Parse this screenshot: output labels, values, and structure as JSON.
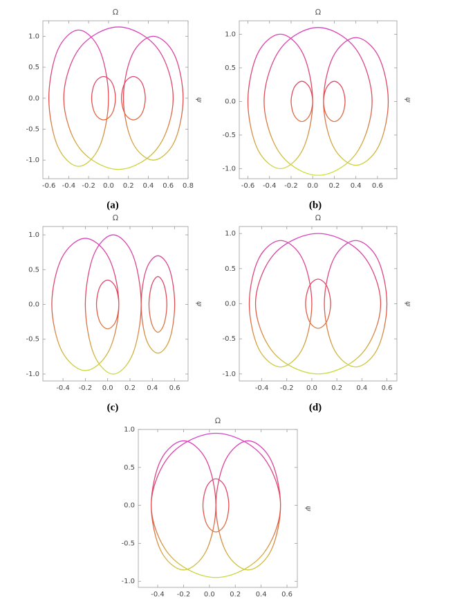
{
  "chart_data": [
    {
      "type": "line",
      "title": "Ω",
      "y_label": "ψ",
      "caption": "(a)",
      "gradient": [
        "#d63fd0",
        "#e24a4a",
        "#c6ee3a"
      ],
      "xlim": [
        -0.66,
        0.8
      ],
      "ylim": [
        -1.3,
        1.25
      ],
      "xticks": [
        -0.6,
        -0.4,
        -0.2,
        {
          "value": 0,
          "label": "0.0"
        },
        0.2,
        0.4,
        0.6,
        0.8
      ],
      "yticks": [
        {
          "value": -1,
          "label": "-1.0"
        },
        -0.5,
        {
          "value": 0,
          "label": "0.0"
        },
        0.5,
        {
          "value": 1,
          "label": "1.0"
        }
      ],
      "x": [
        0,
        -0.09,
        -0.3,
        -0.51,
        -0.6,
        -0.51,
        -0.3,
        -0.09,
        0,
        null,
        0.65,
        0.49,
        0.1,
        -0.29,
        -0.45,
        -0.29,
        0.1,
        0.49,
        0.65,
        null,
        0.75,
        0.66,
        0.45,
        0.24,
        0.15,
        0.24,
        0.45,
        0.66,
        0.75,
        null,
        0.07,
        0.035,
        -0.05,
        -0.135,
        -0.17,
        -0.135,
        -0.05,
        0.035,
        0.07,
        null,
        0.37,
        0.335,
        0.25,
        0.165,
        0.13,
        0.165,
        0.25,
        0.335,
        0.37
      ],
      "values": [
        0,
        0.78,
        1.1,
        0.78,
        0,
        -0.78,
        -1.1,
        -0.78,
        0,
        null,
        0,
        0.81,
        1.15,
        0.81,
        0,
        -0.81,
        -1.15,
        -0.81,
        0,
        null,
        0,
        0.71,
        1,
        0.71,
        0,
        -0.71,
        -1,
        -0.71,
        0,
        null,
        0,
        0.25,
        0.35,
        0.25,
        0,
        -0.25,
        -0.35,
        -0.25,
        0,
        null,
        0,
        0.25,
        0.35,
        0.25,
        0,
        -0.25,
        -0.35,
        -0.25,
        0
      ]
    },
    {
      "type": "line",
      "title": "Ω",
      "y_label": "ψ",
      "caption": "(b)",
      "gradient": [
        "#d63fd0",
        "#e24a4a",
        "#c6ee3a"
      ],
      "xlim": [
        -0.68,
        0.78
      ],
      "ylim": [
        -1.15,
        1.2
      ],
      "xticks": [
        -0.6,
        -0.4,
        -0.2,
        {
          "value": 0,
          "label": "0.0"
        },
        0.2,
        0.4,
        0.6
      ],
      "yticks": [
        {
          "value": -1,
          "label": "-1.0"
        },
        -0.5,
        {
          "value": 0,
          "label": "0.0"
        },
        0.5,
        {
          "value": 1,
          "label": "1.0"
        }
      ],
      "x": [
        0,
        -0.09,
        -0.3,
        -0.51,
        -0.6,
        -0.51,
        -0.3,
        -0.09,
        0,
        null,
        0.55,
        0.4,
        0.05,
        -0.3,
        -0.45,
        -0.3,
        0.05,
        0.4,
        0.55,
        null,
        0.7,
        0.61,
        0.4,
        0.19,
        0.1,
        0.19,
        0.4,
        0.61,
        0.7,
        null,
        0,
        -0.03,
        -0.1,
        -0.17,
        -0.2,
        -0.17,
        -0.1,
        -0.03,
        0,
        null,
        0.3,
        0.27,
        0.2,
        0.13,
        0.1,
        0.13,
        0.2,
        0.27,
        0.3
      ],
      "values": [
        0,
        0.71,
        1,
        0.71,
        0,
        -0.71,
        -1,
        -0.71,
        0,
        null,
        0,
        0.78,
        1.1,
        0.78,
        0,
        -0.78,
        -1.1,
        -0.78,
        0,
        null,
        0,
        0.67,
        0.95,
        0.67,
        0,
        -0.67,
        -0.95,
        -0.67,
        0,
        null,
        0,
        0.21,
        0.3,
        0.21,
        0,
        -0.21,
        -0.3,
        -0.21,
        0,
        null,
        0,
        0.21,
        0.3,
        0.21,
        0,
        -0.21,
        -0.3,
        -0.21,
        0
      ]
    },
    {
      "type": "line",
      "title": "Ω",
      "y_label": "ψ",
      "caption": "(c)",
      "gradient": [
        "#d63fd0",
        "#e24a4a",
        "#c6ee3a"
      ],
      "xlim": [
        -0.58,
        0.72
      ],
      "ylim": [
        -1.1,
        1.12
      ],
      "xticks": [
        -0.4,
        -0.2,
        {
          "value": 0,
          "label": "0.0"
        },
        0.2,
        0.4,
        0.6
      ],
      "yticks": [
        {
          "value": -1,
          "label": "-1.0"
        },
        -0.5,
        {
          "value": 0,
          "label": "0.0"
        },
        0.5,
        {
          "value": 1,
          "label": "1.0"
        }
      ],
      "x": [
        0.1,
        0.01,
        -0.2,
        -0.41,
        -0.5,
        -0.41,
        -0.2,
        0.01,
        0.1,
        null,
        0.3,
        0.225,
        0.05,
        -0.125,
        -0.2,
        -0.125,
        0.05,
        0.225,
        0.3,
        null,
        0.6,
        0.555,
        0.45,
        0.345,
        0.3,
        0.345,
        0.45,
        0.555,
        0.6,
        null,
        0.1,
        0.07,
        0,
        -0.07,
        -0.1,
        -0.07,
        0,
        0.07,
        0.1,
        null,
        0.53,
        0.505,
        0.45,
        0.395,
        0.37,
        0.395,
        0.45,
        0.505,
        0.53
      ],
      "values": [
        0,
        0.67,
        0.95,
        0.67,
        0,
        -0.67,
        -0.95,
        -0.67,
        0,
        null,
        0,
        0.71,
        1,
        0.71,
        0,
        -0.71,
        -1,
        -0.71,
        0,
        null,
        0,
        0.5,
        0.7,
        0.5,
        0,
        -0.5,
        -0.7,
        -0.5,
        0,
        null,
        0,
        0.25,
        0.35,
        0.25,
        0,
        -0.25,
        -0.35,
        -0.25,
        0,
        null,
        0,
        0.28,
        0.4,
        0.28,
        0,
        -0.28,
        -0.4,
        -0.28,
        0
      ]
    },
    {
      "type": "line",
      "title": "Ω",
      "y_label": "ψ",
      "caption": "(d)",
      "gradient": [
        "#d63fd0",
        "#e24a4a",
        "#c6ee3a"
      ],
      "xlim": [
        -0.58,
        0.68
      ],
      "ylim": [
        -1.1,
        1.1
      ],
      "xticks": [
        -0.4,
        -0.2,
        {
          "value": 0,
          "label": "0.0"
        },
        0.2,
        0.4,
        0.6
      ],
      "yticks": [
        {
          "value": -1,
          "label": "-1.0"
        },
        -0.5,
        {
          "value": 0,
          "label": "0.0"
        },
        0.5,
        {
          "value": 1,
          "label": "1.0"
        }
      ],
      "x": [
        0,
        -0.075,
        -0.25,
        -0.425,
        -0.5,
        -0.425,
        -0.25,
        -0.075,
        0,
        null,
        0.55,
        0.4,
        0.05,
        -0.3,
        -0.45,
        -0.3,
        0.05,
        0.4,
        0.55,
        null,
        0.6,
        0.525,
        0.35,
        0.175,
        0.1,
        0.175,
        0.35,
        0.525,
        0.6,
        null,
        0.15,
        0.12,
        0.05,
        -0.02,
        -0.05,
        -0.02,
        0.05,
        0.12,
        0.15
      ],
      "values": [
        0,
        0.64,
        0.9,
        0.64,
        0,
        -0.64,
        -0.9,
        -0.64,
        0,
        null,
        0,
        0.71,
        1,
        0.71,
        0,
        -0.71,
        -1,
        -0.71,
        0,
        null,
        0,
        0.64,
        0.9,
        0.64,
        0,
        -0.64,
        -0.9,
        -0.64,
        0,
        null,
        0,
        0.25,
        0.35,
        0.25,
        0,
        -0.25,
        -0.35,
        -0.25,
        0
      ]
    },
    {
      "type": "line",
      "title": "Ω",
      "y_label": "ψ",
      "caption": null,
      "gradient": [
        "#d63fd0",
        "#e24a4a",
        "#c6ee3a"
      ],
      "xlim": [
        -0.55,
        0.68
      ],
      "ylim": [
        -1.08,
        1.0
      ],
      "xticks": [
        -0.4,
        -0.2,
        {
          "value": 0,
          "label": "0.0"
        },
        0.2,
        0.4,
        0.6
      ],
      "yticks": [
        {
          "value": -1,
          "label": "-1.0"
        },
        -0.5,
        {
          "value": 0,
          "label": "0.0"
        },
        0.5,
        {
          "value": 1,
          "label": "1.0"
        }
      ],
      "x": [
        0.05,
        -0.025,
        -0.2,
        -0.375,
        -0.45,
        -0.375,
        -0.2,
        -0.025,
        0.05,
        null,
        0.55,
        0.4,
        0.05,
        -0.3,
        -0.45,
        -0.3,
        0.05,
        0.4,
        0.55,
        null,
        0.55,
        0.475,
        0.3,
        0.125,
        0.05,
        0.125,
        0.3,
        0.475,
        0.55,
        null,
        0.15,
        0.12,
        0.05,
        -0.02,
        -0.05,
        -0.02,
        0.05,
        0.12,
        0.15
      ],
      "values": [
        0,
        0.6,
        0.85,
        0.6,
        0,
        -0.6,
        -0.85,
        -0.6,
        0,
        null,
        0,
        0.67,
        0.95,
        0.67,
        0,
        -0.67,
        -0.95,
        -0.67,
        0,
        null,
        0,
        0.6,
        0.85,
        0.6,
        0,
        -0.6,
        -0.85,
        -0.6,
        0,
        null,
        0,
        0.25,
        0.35,
        0.25,
        0,
        -0.25,
        -0.35,
        -0.25,
        0
      ]
    }
  ]
}
